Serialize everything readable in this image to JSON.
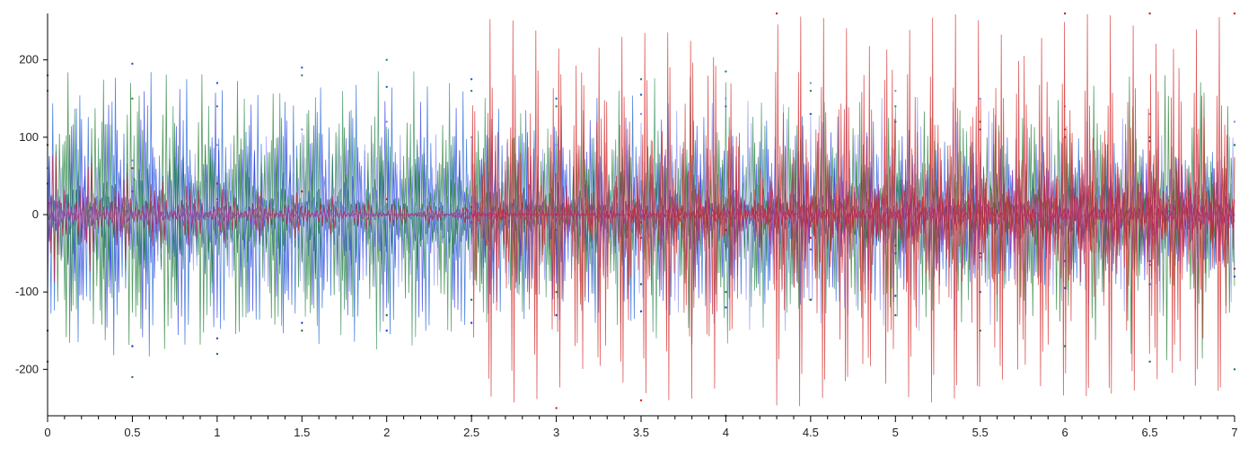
{
  "chart_data": {
    "type": "line",
    "title": "",
    "xlabel": "",
    "ylabel": "",
    "xlim": [
      0,
      7
    ],
    "ylim": [
      -260,
      260
    ],
    "x_ticks": [
      "0",
      "0.5",
      "1",
      "1.5",
      "2",
      "2.5",
      "3",
      "3.5",
      "4",
      "4.5",
      "5",
      "5.5",
      "6",
      "6.5",
      "7"
    ],
    "x_tick_values": [
      0,
      0.5,
      1,
      1.5,
      2,
      2.5,
      3,
      3.5,
      4,
      4.5,
      5,
      5.5,
      6,
      6.5,
      7
    ],
    "y_ticks": [
      "200",
      "100",
      "0",
      "-100",
      "-200"
    ],
    "y_tick_values": [
      200,
      100,
      0,
      -100,
      -200
    ],
    "x_minor_step": 0.1,
    "grid": false,
    "legend": "none",
    "series": [
      {
        "color": "#1a5fd6",
        "x": [
          0,
          0.5,
          1,
          1.5,
          2,
          2.5,
          3,
          3.5,
          4,
          4.5,
          5,
          5.5,
          6,
          6.5,
          7
        ],
        "values": [
          180,
          195,
          170,
          190,
          165,
          175,
          150,
          155,
          140,
          130,
          120,
          110,
          100,
          95,
          90
        ]
      },
      {
        "color": "#2b36e0",
        "x": [
          0,
          0.5,
          1,
          1.5,
          2,
          2.5,
          3,
          3.5,
          4,
          4.5,
          5,
          5.5,
          6,
          6.5,
          7
        ],
        "values": [
          -150,
          -170,
          -160,
          -140,
          -150,
          -140,
          -130,
          -125,
          -120,
          -110,
          -105,
          -100,
          -95,
          -90,
          -80
        ]
      },
      {
        "color": "#2e8b57",
        "x": [
          0,
          0.5,
          1,
          1.5,
          2,
          2.5,
          3,
          3.5,
          4,
          4.5,
          5,
          5.5,
          6,
          6.5,
          7
        ],
        "values": [
          160,
          150,
          140,
          180,
          200,
          160,
          140,
          175,
          185,
          160,
          140,
          120,
          110,
          100,
          90
        ]
      },
      {
        "color": "#1e7a2e",
        "x": [
          0,
          0.5,
          1,
          1.5,
          2,
          2.5,
          3,
          3.5,
          4,
          4.5,
          5,
          5.5,
          6,
          6.5,
          7
        ],
        "values": [
          -190,
          -210,
          -180,
          -150,
          -130,
          -110,
          -100,
          -90,
          -100,
          -110,
          -130,
          -150,
          -170,
          -190,
          -200
        ]
      },
      {
        "color": "#8a8ff0",
        "x": [
          0,
          0.5,
          1,
          1.5,
          2,
          2.5,
          3,
          3.5,
          4,
          4.5,
          5,
          5.5,
          6,
          6.5,
          7
        ],
        "values": [
          60,
          70,
          90,
          110,
          120,
          100,
          90,
          130,
          150,
          170,
          160,
          150,
          140,
          130,
          120
        ]
      },
      {
        "color": "#c21a3a",
        "x": [
          0,
          0.5,
          1,
          1.5,
          2,
          2.5,
          3,
          3.5,
          4,
          4.5,
          5,
          5.5,
          6,
          6.5,
          7
        ],
        "values": [
          90,
          60,
          40,
          30,
          20,
          10,
          0,
          -10,
          -20,
          -30,
          -40,
          -50,
          -60,
          -60,
          -70
        ]
      },
      {
        "color": "#9b2fa8",
        "x": [
          0,
          0.5,
          1,
          1.5,
          2,
          2.5,
          3,
          3.5,
          4,
          4.5,
          5,
          5.5,
          6,
          6.5,
          7
        ],
        "values": [
          40,
          30,
          20,
          10,
          0,
          -10,
          -20,
          -30,
          -40,
          -45,
          -50,
          -55,
          -60,
          -65,
          -70
        ]
      },
      {
        "color": "#d12020",
        "x": [
          2.5,
          3,
          3.5,
          4,
          4.3,
          6,
          6.5,
          7
        ],
        "values": [
          -260,
          -250,
          -240,
          -260,
          260,
          260,
          260,
          260
        ]
      }
    ]
  }
}
